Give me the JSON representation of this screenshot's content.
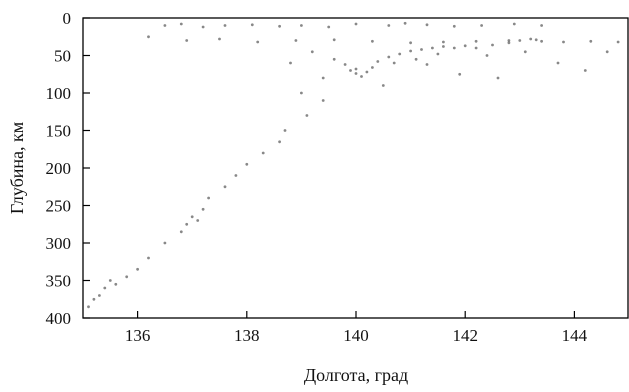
{
  "chart_data": {
    "type": "scatter",
    "title": "",
    "xlabel": "Долгота, град",
    "ylabel": "Глубина, км",
    "xlim": [
      135,
      145
    ],
    "ylim": [
      0,
      400
    ],
    "y_inverted": true,
    "xticks": [
      136,
      138,
      140,
      142,
      144
    ],
    "xtick_labels": [
      "136",
      "138",
      "140",
      "142",
      "144"
    ],
    "yticks": [
      0,
      50,
      100,
      150,
      200,
      250,
      300,
      350,
      400
    ],
    "ytick_labels": [
      "0",
      "50",
      "100",
      "150",
      "200",
      "250",
      "300",
      "350",
      "400"
    ],
    "grid": false,
    "legend": "none",
    "point_color": "#555555",
    "series": [
      {
        "points": [
          [
            136.5,
            10
          ],
          [
            136.8,
            8
          ],
          [
            137.2,
            12
          ],
          [
            137.6,
            10
          ],
          [
            138.1,
            9
          ],
          [
            138.6,
            11
          ],
          [
            139.0,
            10
          ],
          [
            139.5,
            12
          ],
          [
            140.0,
            8
          ],
          [
            140.6,
            10
          ],
          [
            140.9,
            7
          ],
          [
            141.3,
            9
          ],
          [
            141.8,
            11
          ],
          [
            142.3,
            10
          ],
          [
            142.9,
            8
          ],
          [
            143.4,
            10
          ],
          [
            136.2,
            25
          ],
          [
            136.9,
            30
          ],
          [
            137.5,
            28
          ],
          [
            138.2,
            32
          ],
          [
            138.9,
            30
          ],
          [
            139.6,
            29
          ],
          [
            140.3,
            31
          ],
          [
            141.0,
            33
          ],
          [
            141.6,
            32
          ],
          [
            142.2,
            31
          ],
          [
            142.8,
            30
          ],
          [
            143.3,
            29
          ],
          [
            143.8,
            32
          ],
          [
            144.3,
            31
          ],
          [
            144.8,
            32
          ],
          [
            139.6,
            55
          ],
          [
            139.8,
            62
          ],
          [
            139.9,
            70
          ],
          [
            140.0,
            74
          ],
          [
            140.1,
            78
          ],
          [
            140.2,
            72
          ],
          [
            140.3,
            66
          ],
          [
            140.0,
            68
          ],
          [
            140.4,
            58
          ],
          [
            140.6,
            52
          ],
          [
            140.8,
            48
          ],
          [
            141.0,
            44
          ],
          [
            141.2,
            42
          ],
          [
            141.4,
            40
          ],
          [
            141.6,
            38
          ],
          [
            141.8,
            40
          ],
          [
            142.0,
            37
          ],
          [
            142.2,
            40
          ],
          [
            142.5,
            36
          ],
          [
            142.8,
            33
          ],
          [
            143.0,
            30
          ],
          [
            143.2,
            28
          ],
          [
            143.4,
            31
          ],
          [
            141.1,
            55
          ],
          [
            141.5,
            48
          ],
          [
            140.7,
            60
          ],
          [
            141.3,
            62
          ],
          [
            142.4,
            50
          ],
          [
            143.1,
            45
          ],
          [
            139.2,
            45
          ],
          [
            138.8,
            60
          ],
          [
            139.4,
            80
          ],
          [
            140.5,
            90
          ],
          [
            139.0,
            100
          ],
          [
            139.4,
            110
          ],
          [
            139.1,
            130
          ],
          [
            138.7,
            150
          ],
          [
            138.6,
            165
          ],
          [
            138.3,
            180
          ],
          [
            138.0,
            195
          ],
          [
            137.8,
            210
          ],
          [
            137.6,
            225
          ],
          [
            137.3,
            240
          ],
          [
            137.2,
            255
          ],
          [
            137.0,
            265
          ],
          [
            136.9,
            275
          ],
          [
            137.1,
            270
          ],
          [
            136.8,
            285
          ],
          [
            136.5,
            300
          ],
          [
            136.2,
            320
          ],
          [
            136.0,
            335
          ],
          [
            135.8,
            345
          ],
          [
            135.6,
            355
          ],
          [
            135.4,
            360
          ],
          [
            135.2,
            375
          ],
          [
            135.1,
            385
          ],
          [
            135.3,
            370
          ],
          [
            135.5,
            350
          ],
          [
            143.7,
            60
          ],
          [
            144.2,
            70
          ],
          [
            144.6,
            45
          ],
          [
            141.9,
            75
          ],
          [
            142.6,
            80
          ]
        ]
      }
    ]
  }
}
